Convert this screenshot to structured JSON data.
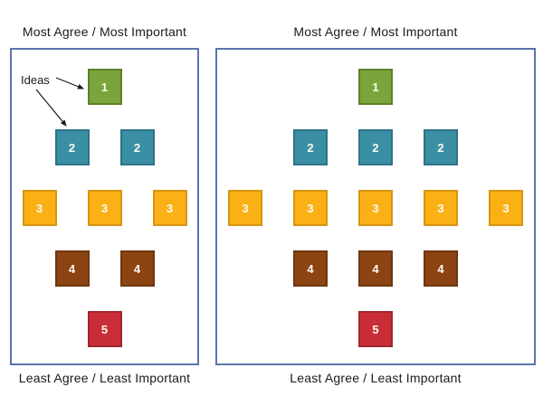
{
  "diagram": {
    "panels": [
      {
        "title_top": "Most Agree / Most Important",
        "title_bottom": "Least Agree / Least Important",
        "annotation_label": "Ideas",
        "rows": [
          {
            "level": "1",
            "color": "green",
            "count": 1
          },
          {
            "level": "2",
            "color": "teal",
            "count": 2
          },
          {
            "level": "3",
            "color": "yellow",
            "count": 3
          },
          {
            "level": "4",
            "color": "brown",
            "count": 2
          },
          {
            "level": "5",
            "color": "red",
            "count": 1
          }
        ]
      },
      {
        "title_top": "Most Agree / Most Important",
        "title_bottom": "Least Agree / Least Important",
        "rows": [
          {
            "level": "1",
            "color": "green",
            "count": 1
          },
          {
            "level": "2",
            "color": "teal",
            "count": 3
          },
          {
            "level": "3",
            "color": "yellow",
            "count": 5
          },
          {
            "level": "4",
            "color": "brown",
            "count": 3
          },
          {
            "level": "5",
            "color": "red",
            "count": 1
          }
        ]
      }
    ],
    "colors": {
      "green": {
        "fill": "#7AA43C",
        "border": "#5F7F29"
      },
      "teal": {
        "fill": "#3A8FA4",
        "border": "#2E7386"
      },
      "yellow": {
        "fill": "#FBB116",
        "border": "#D79412"
      },
      "brown": {
        "fill": "#8C4512",
        "border": "#6E3610"
      },
      "red": {
        "fill": "#C92E38",
        "border": "#A2252E"
      },
      "panel_border": "#5C74AD",
      "label_text": "#1A1A1A",
      "square_text": "#FDFBF0"
    }
  }
}
